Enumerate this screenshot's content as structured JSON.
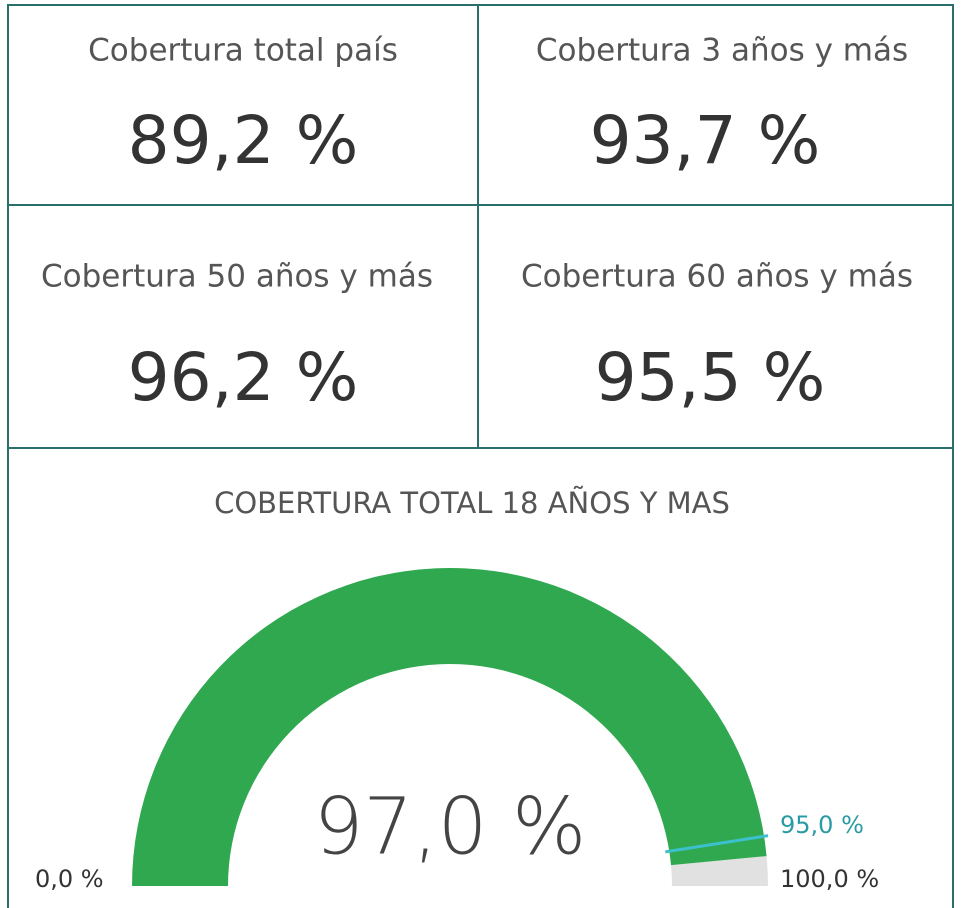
{
  "cards": [
    {
      "label": "Cobertura total país",
      "value": "89,2 %"
    },
    {
      "label": "Cobertura 3 años y más",
      "value": "93,7 %"
    },
    {
      "label": "Cobertura 50 años y más",
      "value": "96,2 %"
    },
    {
      "label": "Cobertura 60 años y más",
      "value": "95,5 %"
    }
  ],
  "chart_data": {
    "type": "gauge",
    "title": "COBERTURA TOTAL 18 AÑOS Y MAS",
    "value": 97,
    "value_label": "97,0 %",
    "min": {
      "value": 0,
      "label": "0,0 %"
    },
    "max": {
      "value": 100,
      "label": "100,0 %"
    },
    "target": {
      "value": 95,
      "label": "95,0 %"
    },
    "color": "#2fa84f",
    "track_color": "#e1e1e1",
    "target_color": "#3cc0cc"
  }
}
